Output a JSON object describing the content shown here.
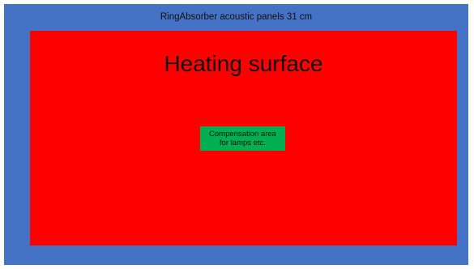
{
  "colors": {
    "frame": "#4472c4",
    "heating_surface": "#ff0000",
    "compensation_area": "#00b050"
  },
  "frame": {
    "label": "RingAbsorber acoustic panels 31 cm"
  },
  "heating_surface": {
    "label": "Heating surface"
  },
  "compensation_area": {
    "label": "Compensation area\nfor lamps etc."
  }
}
